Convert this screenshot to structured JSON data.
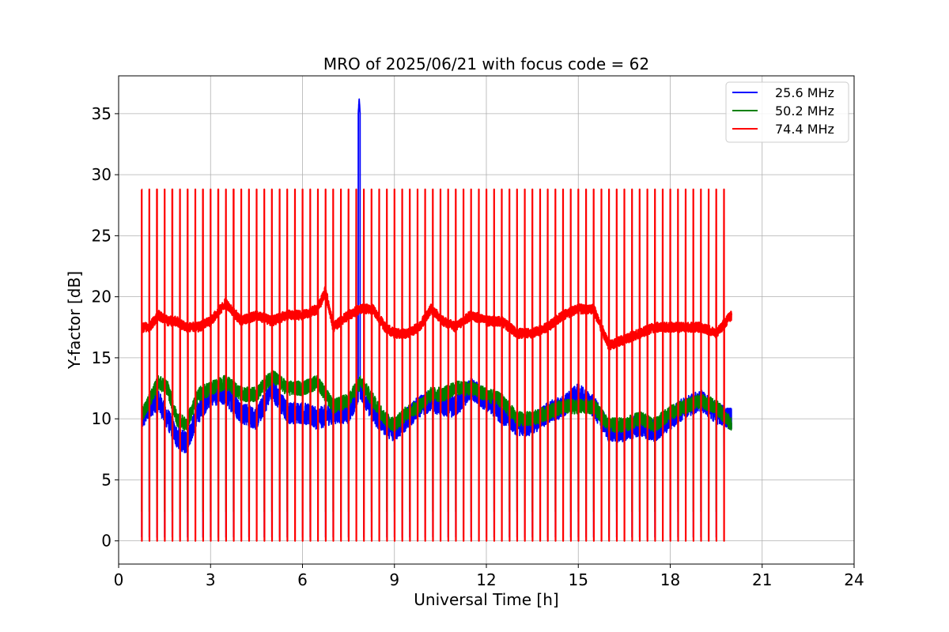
{
  "chart_data": {
    "type": "line",
    "title": "MRO of 2025/06/21 with focus code = 62",
    "xlabel": "Universal Time [h]",
    "ylabel": "Y-factor [dB]",
    "xlim": [
      0,
      24
    ],
    "ylim": [
      -1.9,
      38.1
    ],
    "xticks": [
      0,
      3,
      6,
      9,
      12,
      15,
      18,
      21,
      24
    ],
    "yticks": [
      0,
      5,
      10,
      15,
      20,
      25,
      30,
      35
    ],
    "grid": true,
    "legend_position": "top-right",
    "time_range": [
      0.75,
      20.0
    ],
    "calibration": {
      "period_h": 0.25,
      "spike_high_db": 28.8,
      "dip_low_db": 0.0,
      "dip_low_db_green": 2.4
    },
    "series": [
      {
        "name": "25.6 MHz",
        "color": "#0000ff",
        "x": [
          0.8,
          1.0,
          1.3,
          1.6,
          1.9,
          2.2,
          2.6,
          3.0,
          3.5,
          4.0,
          4.5,
          5.0,
          5.5,
          6.0,
          6.5,
          7.0,
          7.5,
          7.9,
          8.3,
          8.7,
          9.0,
          9.4,
          9.8,
          10.2,
          10.6,
          11.0,
          11.5,
          12.0,
          12.5,
          13.0,
          13.5,
          14.0,
          14.5,
          15.0,
          15.5,
          16.0,
          16.5,
          17.0,
          17.5,
          18.0,
          18.5,
          19.0,
          19.5,
          20.0
        ],
        "y": [
          10.0,
          11.0,
          11.5,
          10.0,
          8.5,
          8.0,
          10.5,
          12.0,
          12.0,
          10.5,
          10.0,
          12.5,
          10.5,
          10.5,
          10.0,
          10.5,
          10.5,
          12.5,
          10.5,
          9.5,
          9.0,
          10.0,
          11.0,
          11.5,
          11.0,
          11.0,
          12.5,
          11.5,
          10.5,
          9.5,
          9.5,
          10.5,
          11.0,
          12.0,
          11.0,
          9.0,
          9.0,
          9.5,
          9.0,
          10.0,
          11.0,
          11.5,
          10.5,
          10.0
        ]
      },
      {
        "name": "50.2 MHz",
        "color": "#008000",
        "x": [
          0.8,
          1.0,
          1.3,
          1.6,
          1.9,
          2.2,
          2.6,
          3.0,
          3.5,
          4.0,
          4.5,
          5.0,
          5.5,
          6.0,
          6.5,
          7.0,
          7.5,
          7.9,
          8.3,
          8.7,
          9.0,
          9.4,
          9.8,
          10.2,
          10.6,
          11.0,
          11.5,
          12.0,
          12.5,
          13.0,
          13.5,
          14.0,
          14.5,
          15.0,
          15.5,
          16.0,
          16.5,
          17.0,
          17.5,
          18.0,
          18.5,
          19.0,
          19.5,
          20.0
        ],
        "y": [
          10.5,
          11.5,
          13.0,
          12.5,
          10.0,
          9.5,
          12.0,
          12.5,
          13.0,
          12.0,
          12.0,
          13.5,
          12.5,
          12.5,
          13.0,
          11.0,
          11.5,
          13.0,
          11.5,
          10.0,
          9.5,
          10.5,
          11.0,
          12.0,
          12.0,
          12.5,
          12.5,
          12.0,
          11.5,
          10.0,
          10.0,
          10.5,
          11.0,
          11.0,
          11.0,
          9.5,
          9.5,
          10.0,
          9.5,
          10.5,
          11.0,
          11.5,
          11.0,
          9.5
        ]
      },
      {
        "name": "74.4 MHz",
        "color": "#ff0000",
        "x": [
          0.8,
          1.0,
          1.3,
          1.6,
          1.9,
          2.2,
          2.6,
          3.0,
          3.5,
          4.0,
          4.5,
          5.0,
          5.5,
          6.0,
          6.5,
          6.75,
          7.0,
          7.5,
          7.9,
          8.3,
          8.7,
          9.0,
          9.4,
          9.8,
          10.2,
          10.6,
          11.0,
          11.5,
          12.0,
          12.5,
          13.0,
          13.5,
          14.0,
          14.5,
          15.0,
          15.5,
          16.0,
          16.5,
          17.0,
          17.5,
          18.0,
          18.5,
          19.0,
          19.5,
          20.0
        ],
        "y": [
          17.5,
          17.5,
          18.5,
          18.0,
          18.0,
          17.5,
          17.5,
          18.0,
          19.5,
          18.0,
          18.5,
          18.0,
          18.5,
          18.5,
          19.0,
          20.5,
          17.5,
          18.5,
          19.0,
          19.0,
          17.5,
          17.0,
          17.0,
          17.5,
          19.0,
          18.0,
          17.5,
          18.5,
          18.0,
          18.0,
          17.0,
          17.0,
          17.5,
          18.5,
          19.0,
          19.0,
          16.0,
          16.5,
          17.0,
          17.5,
          17.5,
          17.5,
          17.5,
          17.0,
          18.5
        ]
      }
    ],
    "annotations": [
      {
        "series": "25.6 MHz",
        "type": "spike",
        "x": 7.85,
        "y": 36.2
      }
    ]
  }
}
